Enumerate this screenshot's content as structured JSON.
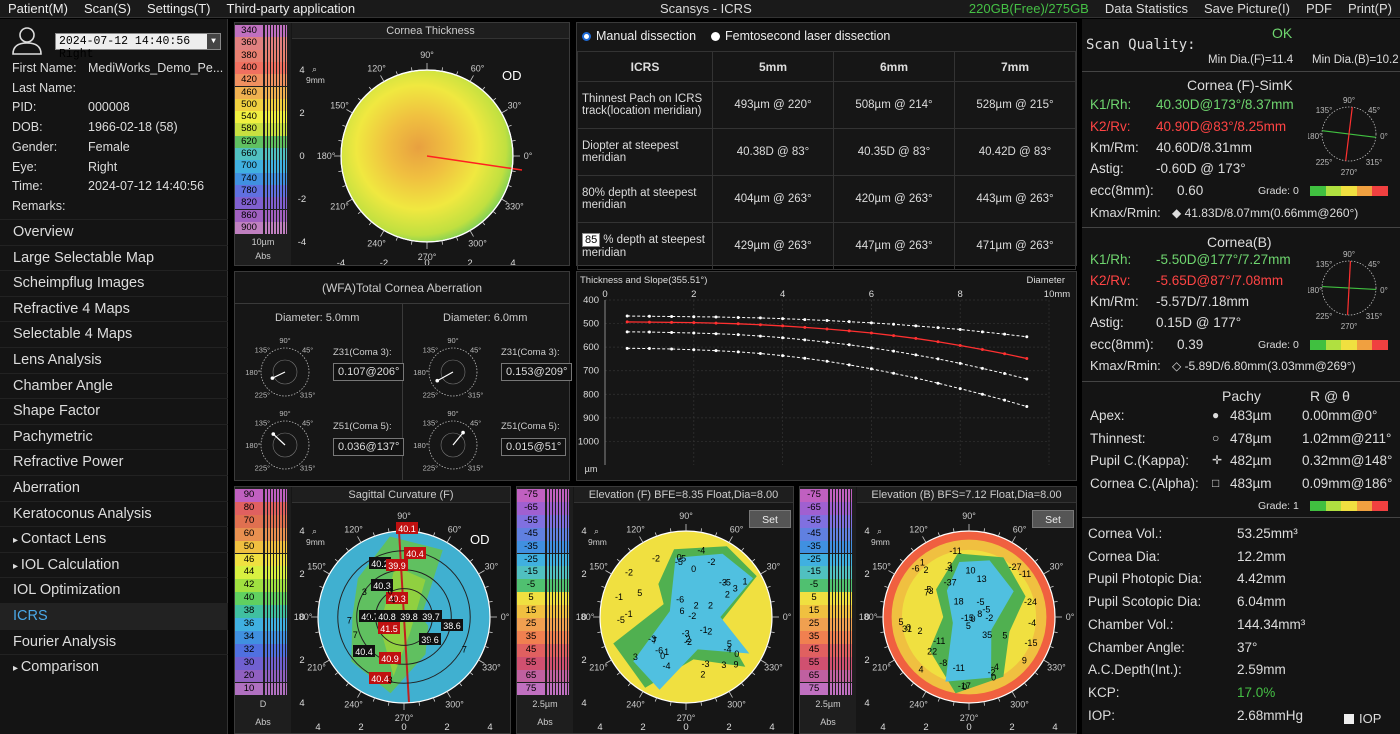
{
  "menu": [
    "Patient(M)",
    "Scan(S)",
    "Settings(T)",
    "Third-party application"
  ],
  "window_title": "Scansys - ICRS",
  "storage": "220GB(Free)/275GB",
  "menu_right": [
    "Data Statistics",
    "Save Picture(I)",
    "PDF",
    "Print(P)"
  ],
  "patient": {
    "exam_select": "2024-07-12 14:40:56 Right",
    "fields": [
      {
        "label": "First Name:",
        "value": "MediWorks_Demo_Pe..."
      },
      {
        "label": "Last Name:",
        "value": ""
      },
      {
        "label": "PID:",
        "value": "000008"
      },
      {
        "label": "DOB:",
        "value": "1966-02-18  (58)"
      },
      {
        "label": "Gender:",
        "value": "Female"
      },
      {
        "label": "Eye:",
        "value": "Right"
      },
      {
        "label": "Time:",
        "value": "2024-07-12 14:40:56"
      },
      {
        "label": "Remarks:",
        "value": ""
      }
    ]
  },
  "nav": [
    {
      "label": "Overview"
    },
    {
      "label": "Large Selectable Map"
    },
    {
      "label": "Scheimpflug Images"
    },
    {
      "label": "Refractive 4 Maps"
    },
    {
      "label": "Selectable 4 Maps"
    },
    {
      "label": "Lens Analysis"
    },
    {
      "label": "Chamber Angle"
    },
    {
      "label": "Shape Factor"
    },
    {
      "label": "Pachymetric"
    },
    {
      "label": "Refractive Power"
    },
    {
      "label": "Aberration"
    },
    {
      "label": "Keratoconus Analysis"
    },
    {
      "label": "Contact Lens",
      "sub": true
    },
    {
      "label": "IOL Calculation",
      "sub": true
    },
    {
      "label": "IOL Optimization"
    },
    {
      "label": "ICRS",
      "active": true
    },
    {
      "label": "Fourier Analysis"
    },
    {
      "label": "Comparison",
      "sub": true
    }
  ],
  "thickness_scale": {
    "values": [
      "340",
      "360",
      "380",
      "400",
      "420",
      "460",
      "500",
      "540",
      "580",
      "620",
      "660",
      "700",
      "740",
      "780",
      "820",
      "860",
      "900"
    ],
    "colors": [
      "#c070c0",
      "#e08080",
      "#e88070",
      "#f07060",
      "#f09060",
      "#f0b050",
      "#f0d040",
      "#f0f040",
      "#c8e040",
      "#60c060",
      "#50c0c0",
      "#40b0e0",
      "#4090e0",
      "#6070e0",
      "#8060d0",
      "#a060c0",
      "#c080c0"
    ],
    "unit": "10µm",
    "footer": "Abs"
  },
  "cornea_thickness": {
    "title": "Cornea Thickness",
    "eye": "OD",
    "mm": "9mm",
    "angles": [
      "90°",
      "60°",
      "30°",
      "0°",
      "330°",
      "300°",
      "270°",
      "240°",
      "210°",
      "180°",
      "150°",
      "120°"
    ],
    "axis": [
      "-4",
      "-2",
      "0",
      "2",
      "4"
    ]
  },
  "dissection": {
    "opt1": "Manual dissection",
    "opt2": "Femtosecond laser dissection"
  },
  "icrs_table": {
    "headers": [
      "ICRS",
      "5mm",
      "6mm",
      "7mm"
    ],
    "rows": [
      {
        "label": "Thinnest Pach on ICRS track(location meridian)",
        "v": [
          "493µm @ 220°",
          "508µm @ 214°",
          "528µm @ 215°"
        ]
      },
      {
        "label": "Diopter at steepest meridian",
        "v": [
          "40.38D @ 83°",
          "40.35D @ 83°",
          "40.42D @ 83°"
        ]
      },
      {
        "label": "80% depth at steepest meridian",
        "v": [
          "404µm @ 263°",
          "420µm @ 263°",
          "443µm @ 263°"
        ]
      },
      {
        "label": "% depth at steepest meridian",
        "pct": "85",
        "v": [
          "429µm @ 263°",
          "447µm @ 263°",
          "471µm @ 263°"
        ]
      }
    ]
  },
  "wfa": {
    "title": "(WFA)Total Cornea Aberration",
    "d1": "Diameter: 5.0mm",
    "d2": "Diameter: 6.0mm",
    "coma3_label": "Z31(Coma 3):",
    "coma5_label": "Z51(Coma 5):",
    "coma3_d1": "0.107@206°",
    "coma5_d1": "0.036@137°",
    "coma3_d2": "0.153@209°",
    "coma5_d2": "0.015@51°",
    "dial_angles": [
      "90°",
      "45°",
      "135°",
      "180°",
      "225°",
      "315°"
    ]
  },
  "chart_data": {
    "type": "line",
    "title": "Thickness and Slope(355.51°)",
    "xlabel": "Diameter",
    "xunit": "10mm",
    "ylabel": "µm",
    "x_ticks": [
      "0",
      "2",
      "4",
      "6",
      "8",
      "10"
    ],
    "y_ticks": [
      "400",
      "500",
      "600",
      "700",
      "800",
      "900",
      "1000"
    ],
    "xlim": [
      0,
      10
    ],
    "ylim": [
      400,
      1100
    ],
    "x": [
      0.5,
      1,
      1.5,
      2,
      2.5,
      3,
      3.5,
      4,
      4.5,
      5,
      5.5,
      6,
      6.5,
      7,
      7.5,
      8,
      8.5,
      9,
      9.5
    ],
    "series": [
      {
        "values": [
          468,
          469,
          470,
          471,
          472,
          474,
          476,
          479,
          483,
          487,
          492,
          497,
          503,
          510,
          517,
          525,
          535,
          545,
          556
        ],
        "color": "#ffffff"
      },
      {
        "values": [
          493,
          494,
          495,
          496,
          498,
          501,
          505,
          510,
          516,
          523,
          531,
          540,
          551,
          563,
          577,
          593,
          610,
          628,
          648
        ],
        "color": "#ff3030"
      },
      {
        "values": [
          535,
          536,
          538,
          540,
          543,
          547,
          553,
          560,
          569,
          579,
          590,
          603,
          617,
          633,
          650,
          669,
          690,
          712,
          735
        ],
        "color": "#ffffff"
      },
      {
        "values": [
          605,
          606,
          608,
          611,
          615,
          620,
          627,
          636,
          647,
          660,
          675,
          692,
          711,
          731,
          753,
          776,
          800,
          825,
          852
        ],
        "color": "#ffffff"
      }
    ]
  },
  "sag_scale": {
    "values": [
      "90",
      "80",
      "70",
      "60",
      "50",
      "46",
      "44",
      "42",
      "40",
      "38",
      "36",
      "34",
      "32",
      "30",
      "20",
      "10"
    ],
    "colors": [
      "#c060c0",
      "#e06060",
      "#e07050",
      "#e89050",
      "#f0c040",
      "#f0e040",
      "#d8f040",
      "#a0e040",
      "#60d060",
      "#40c0a0",
      "#40b0e0",
      "#4090e0",
      "#5070e0",
      "#7060d0",
      "#9060c0",
      "#b070c0"
    ],
    "footer1": "D",
    "footer2": "Abs"
  },
  "sagittal": {
    "title": "Sagittal Curvature (F)",
    "eye": "OD",
    "mm": "9mm",
    "labels": [
      "40.1",
      "40.4",
      "40.2",
      "39.9",
      "40.3",
      "40.3",
      "40.7",
      "40.8",
      "41.5",
      "39.8",
      "39.7",
      "38.6",
      "39.6",
      "40.9",
      "40.4",
      "40.4"
    ],
    "ring_nums": [
      "7",
      "6",
      "7",
      "7",
      "3",
      "3",
      "4",
      "4",
      "0"
    ]
  },
  "elev_scale": {
    "values": [
      "-75",
      "-65",
      "-55",
      "-45",
      "-35",
      "-25",
      "-15",
      "-5",
      "5",
      "15",
      "25",
      "35",
      "45",
      "55",
      "65",
      "75"
    ],
    "colors": [
      "#c060c0",
      "#a060d0",
      "#8070e0",
      "#6080e0",
      "#4090e0",
      "#40b0e0",
      "#50c0c0",
      "#50c070",
      "#f0e040",
      "#f0c040",
      "#f0a050",
      "#f08050",
      "#e06060",
      "#d05070",
      "#c060a0",
      "#c070c0"
    ],
    "unit": "2.5µm",
    "footer": "Abs"
  },
  "elev_f": {
    "title": "Elevation (F) BFE=8.35 Float,Dia=8.00",
    "set": "Set",
    "mm": "9mm",
    "nums": [
      "-5",
      "-5",
      "9",
      "-3",
      "-3",
      "-4",
      "0",
      "-6",
      "1",
      "-2",
      "2",
      "5",
      "-1",
      "1",
      "3",
      "2",
      "-1",
      "5",
      "7",
      "2",
      "-2",
      "2",
      "0",
      "3",
      "6",
      "2",
      "-5",
      "-4",
      "-2",
      "0",
      "-1",
      "-2",
      "-6",
      "-4",
      "-3",
      "-2",
      "0",
      "-3",
      "-5",
      "3",
      "2"
    ]
  },
  "elev_b": {
    "title": "Elevation (B) BFS=7.12 Float,Dia=8.00",
    "set": "Set",
    "mm": "9mm",
    "nums": [
      "4",
      "-6",
      "-17",
      "-11",
      "5",
      "35",
      "-11",
      "-11",
      "-15",
      "-11",
      "-5",
      "5",
      "22",
      "31",
      "18",
      "7",
      "5",
      "0",
      "-8",
      "-2",
      "2",
      "8",
      "3",
      "9",
      "13",
      "-4",
      "-4",
      "-2",
      "0",
      "3",
      "2",
      "1",
      "0",
      "-5",
      "0",
      "-4",
      "-24",
      "-15",
      "-37",
      "-27",
      "5",
      "10"
    ]
  },
  "quality": {
    "label": "Scan Quality:",
    "value": "OK",
    "min_f": "Min Dia.(F)=11.4",
    "min_b": "Min Dia.(B)=10.2"
  },
  "simk": {
    "title": "Cornea (F)-SimK",
    "k1_label": "K1/Rh:",
    "k1": "40.30D@173°/8.37mm",
    "k2_label": "K2/Rv:",
    "k2": "40.90D@83°/8.25mm",
    "km_label": "Km/Rm:",
    "km": "40.60D/8.31mm",
    "astig_label": "Astig:",
    "astig": "-0.60D @ 173°",
    "ecc_label": "ecc(8mm):",
    "ecc": "0.60",
    "grade": "Grade: 0",
    "kmax_label": "Kmax/Rmin:",
    "kmax": "41.83D/8.07mm(0.66mm@260°)"
  },
  "corneab": {
    "title": "Cornea(B)",
    "k1_label": "K1/Rh:",
    "k1": "-5.50D@177°/7.27mm",
    "k2_label": "K2/Rv:",
    "k2": "-5.65D@87°/7.08mm",
    "km_label": "Km/Rm:",
    "km": "-5.57D/7.18mm",
    "astig_label": "Astig:",
    "astig": "0.15D @ 177°",
    "ecc_label": "ecc(8mm):",
    "ecc": "0.39",
    "grade": "Grade: 0",
    "kmax_label": "Kmax/Rmin:",
    "kmax": "-5.89D/6.80mm(3.03mm@269°)"
  },
  "dial_angles": [
    "90°",
    "135°",
    "45°",
    "180°",
    "0°",
    "225°",
    "315°",
    "270°"
  ],
  "pachy": {
    "h1": "Pachy",
    "h2": "R @ θ",
    "rows": [
      {
        "label": "Apex:",
        "pachy": "483µm",
        "r": "0.00mm@0°"
      },
      {
        "label": "Thinnest:",
        "pachy": "478µm",
        "r": "1.02mm@211°"
      },
      {
        "label": "Pupil C.(Kappa):",
        "pachy": "482µm",
        "r": "0.32mm@148°"
      },
      {
        "label": "Cornea C.(Alpha):",
        "pachy": "483µm",
        "r": "0.09mm@186°"
      }
    ],
    "grade": "Grade: 1"
  },
  "metrics": [
    {
      "label": "Cornea Vol.:",
      "value": "53.25mm³"
    },
    {
      "label": "Cornea Dia:",
      "value": "12.2mm"
    },
    {
      "label": "Pupil Photopic Dia:",
      "value": "4.42mm"
    },
    {
      "label": "Pupil Scotopic Dia:",
      "value": "6.04mm"
    },
    {
      "label": "Chamber Vol.:",
      "value": "144.34mm³"
    },
    {
      "label": "Chamber Angle:",
      "value": "37°"
    },
    {
      "label": "A.C.Depth(Int.):",
      "value": "2.59mm"
    },
    {
      "label": "KCP:",
      "value": "17.0%"
    },
    {
      "label": "IOP:",
      "value": "2.68mmHg"
    }
  ],
  "iop_check": "IOP"
}
